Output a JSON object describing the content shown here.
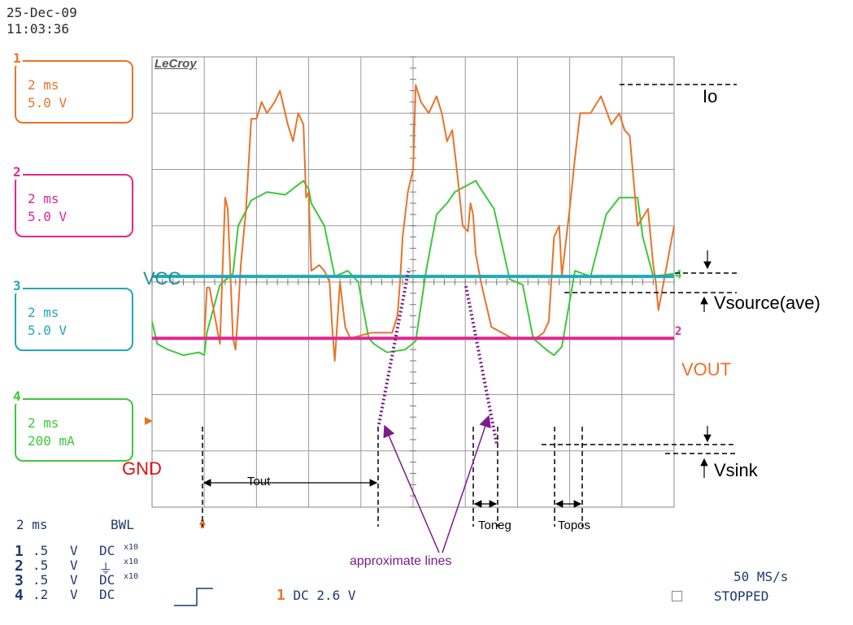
{
  "header": {
    "date": "25-Dec-09",
    "time": "11:03:36"
  },
  "channels": [
    {
      "num": "1",
      "timebase": "2 ms",
      "scale": "5.0 V",
      "color": "#e8732a"
    },
    {
      "num": "2",
      "timebase": "2 ms",
      "scale": "5.0 V",
      "color": "#e02890"
    },
    {
      "num": "3",
      "timebase": "2 ms",
      "scale": "5.0 V",
      "color": "#20a8b8"
    },
    {
      "num": "4",
      "timebase": "2 ms",
      "scale": "200 mA",
      "color": "#3cc83c"
    }
  ],
  "brand": "LeCroy",
  "labels": {
    "vcc": "VCC",
    "gnd": "GND",
    "io": "Io",
    "vsource": "Vsource(ave)",
    "vout": "VOUT",
    "vsink": "Vsink",
    "tout": "Tout",
    "toneg": "Toneg",
    "topos": "Topos",
    "approx": "approximate lines"
  },
  "bottom": {
    "timebase": "2 ms",
    "bwl": "BWL",
    "rows": [
      {
        "num": "1",
        "volts": ".5",
        "unit": "V",
        "coupling": "DC",
        "probe": "x10"
      },
      {
        "num": "2",
        "volts": ".5",
        "unit": "V",
        "coupling": "⏚",
        "probe": "x10"
      },
      {
        "num": "3",
        "volts": ".5",
        "unit": "V",
        "coupling": "DC",
        "probe": "x10"
      },
      {
        "num": "4",
        "volts": ".2",
        "unit": "V",
        "coupling": "DC",
        "probe": ""
      }
    ],
    "trigger_ch": "1",
    "trigger_text": "DC 2.6 V",
    "sample_rate": "50 MS/s",
    "status": "STOPPED"
  },
  "chart_data": {
    "type": "line",
    "grid": true,
    "divisions": {
      "x": 10,
      "y": 8
    },
    "xlabel": "",
    "ylabel": "",
    "series": [
      {
        "name": "Io",
        "color": "#3cc83c",
        "x": [
          0,
          0.1,
          0.3,
          0.6,
          0.9,
          1.0,
          1.05,
          1.3,
          1.55,
          1.65,
          1.9,
          2.2,
          2.55,
          2.9,
          3.0,
          3.05,
          3.3,
          3.5,
          3.75,
          3.95,
          4.15,
          4.25,
          4.5,
          4.85,
          5.05,
          5.25,
          5.45,
          5.65,
          5.8,
          6.0,
          6.2,
          6.3,
          6.55,
          6.85,
          7.1,
          7.3,
          7.55,
          7.7,
          7.85,
          8.1,
          8.4,
          8.7,
          8.95,
          9.15,
          9.3,
          9.4,
          9.6,
          10.0
        ],
        "y": [
          -0.7,
          -1.1,
          -1.2,
          -1.3,
          -1.25,
          -1.3,
          -0.9,
          -0.05,
          0.15,
          1.0,
          1.45,
          1.6,
          1.55,
          1.8,
          1.65,
          1.4,
          1.0,
          0.1,
          0.2,
          0.0,
          -1.0,
          -1.1,
          -1.25,
          -1.2,
          -1.05,
          0.2,
          1.2,
          1.4,
          1.6,
          1.7,
          1.8,
          1.65,
          1.3,
          0.05,
          -0.05,
          -1.0,
          -1.2,
          -1.3,
          -1.15,
          0.2,
          0.1,
          1.2,
          1.5,
          1.5,
          1.5,
          0.8,
          0.1,
          0.15
        ]
      },
      {
        "name": "VOUT",
        "color": "#e8732a",
        "x": [
          0,
          0.9,
          1.0,
          1.05,
          1.1,
          1.3,
          1.4,
          1.45,
          1.55,
          1.6,
          1.65,
          1.7,
          1.8,
          1.9,
          2.0,
          2.1,
          2.2,
          2.35,
          2.45,
          2.6,
          2.7,
          2.8,
          2.9,
          2.95,
          3.0,
          3.05,
          3.2,
          3.3,
          3.4,
          3.45,
          3.5,
          3.6,
          3.7,
          3.8,
          4.2,
          4.45,
          4.6,
          4.7,
          4.75,
          4.8,
          4.9,
          5.0,
          5.05,
          5.15,
          5.3,
          5.45,
          5.55,
          5.65,
          5.75,
          5.85,
          5.95,
          6.05,
          6.1,
          6.15,
          6.2,
          6.3,
          6.5,
          6.9,
          7.35,
          7.5,
          7.6,
          7.7,
          7.8,
          7.85,
          8.0,
          8.1,
          8.2,
          8.4,
          8.6,
          8.8,
          8.95,
          9.05,
          9.15,
          9.3,
          9.5,
          9.6,
          9.65,
          9.7,
          10.0
        ],
        "y": [
          -1.0,
          -1.0,
          -1.0,
          -0.1,
          -0.1,
          -1.1,
          1.5,
          1.3,
          -1.0,
          -1.2,
          -0.5,
          0.3,
          1.3,
          2.9,
          2.9,
          3.2,
          3.0,
          3.2,
          3.4,
          2.8,
          2.5,
          3.0,
          2.8,
          1.5,
          1.6,
          0.2,
          0.3,
          0.2,
          0.0,
          -0.8,
          -1.4,
          0.0,
          -0.8,
          -1.0,
          -0.9,
          -0.9,
          -0.9,
          -0.6,
          0.0,
          0.8,
          1.6,
          2.0,
          3.5,
          3.2,
          3.0,
          3.3,
          3.0,
          2.5,
          2.7,
          1.9,
          1.0,
          0.9,
          1.4,
          1.2,
          0.5,
          0.0,
          -0.8,
          -1.0,
          -1.0,
          -0.9,
          -0.7,
          0.8,
          1.0,
          0.1,
          1.3,
          2.2,
          3.0,
          3.0,
          3.3,
          2.8,
          3.0,
          2.7,
          2.6,
          1.0,
          1.3,
          0.3,
          0.0,
          -0.5,
          1.0
        ]
      },
      {
        "name": "VCC",
        "color": "#20a8b8",
        "x": [
          0,
          10
        ],
        "y": [
          0.1,
          0.1
        ]
      },
      {
        "name": "GND",
        "color": "#e02890",
        "x": [
          0,
          10
        ],
        "y": [
          -1.0,
          -1.0
        ]
      }
    ]
  }
}
